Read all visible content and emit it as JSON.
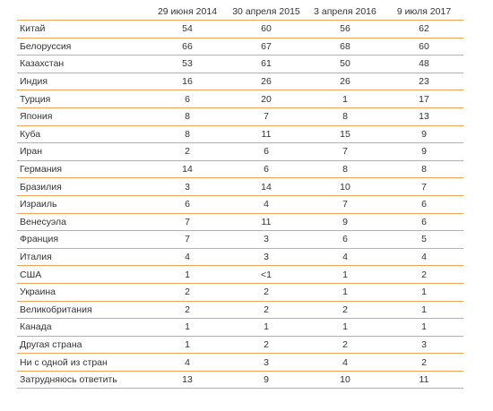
{
  "table": {
    "columns": [
      "",
      "29 июня 2014",
      "30 апреля 2015",
      "3 апреля 2016",
      "9 июля 2017"
    ],
    "rows": [
      [
        "Китай",
        "54",
        "60",
        "56",
        "62"
      ],
      [
        "Белоруссия",
        "66",
        "67",
        "68",
        "60"
      ],
      [
        "Казахстан",
        "53",
        "61",
        "50",
        "48"
      ],
      [
        "Индия",
        "16",
        "26",
        "26",
        "23"
      ],
      [
        "Турция",
        "6",
        "20",
        "1",
        "17"
      ],
      [
        "Япония",
        "8",
        "7",
        "8",
        "13"
      ],
      [
        "Куба",
        "8",
        "11",
        "15",
        "9"
      ],
      [
        "Иран",
        "2",
        "6",
        "7",
        "9"
      ],
      [
        "Германия",
        "14",
        "6",
        "8",
        "8"
      ],
      [
        "Бразилия",
        "3",
        "14",
        "10",
        "7"
      ],
      [
        "Израиль",
        "6",
        "4",
        "7",
        "6"
      ],
      [
        "Венесуэла",
        "7",
        "11",
        "9",
        "6"
      ],
      [
        "Франция",
        "7",
        "3",
        "6",
        "5"
      ],
      [
        "Италия",
        "4",
        "3",
        "4",
        "4"
      ],
      [
        "США",
        "1",
        "<1",
        "1",
        "2"
      ],
      [
        "Украина",
        "2",
        "2",
        "1",
        "1"
      ],
      [
        "Великобритания",
        "2",
        "2",
        "2",
        "1"
      ],
      [
        "Канада",
        "1",
        "1",
        "1",
        "1"
      ],
      [
        "Другая страна",
        "1",
        "2",
        "2",
        "3"
      ],
      [
        "Ни с одной из стран",
        "4",
        "3",
        "4",
        "2"
      ],
      [
        "Затрудняюсь ответить",
        "13",
        "9",
        "10",
        "11"
      ]
    ]
  },
  "colors": {
    "rule": "#f0a15a",
    "text": "#333333"
  }
}
